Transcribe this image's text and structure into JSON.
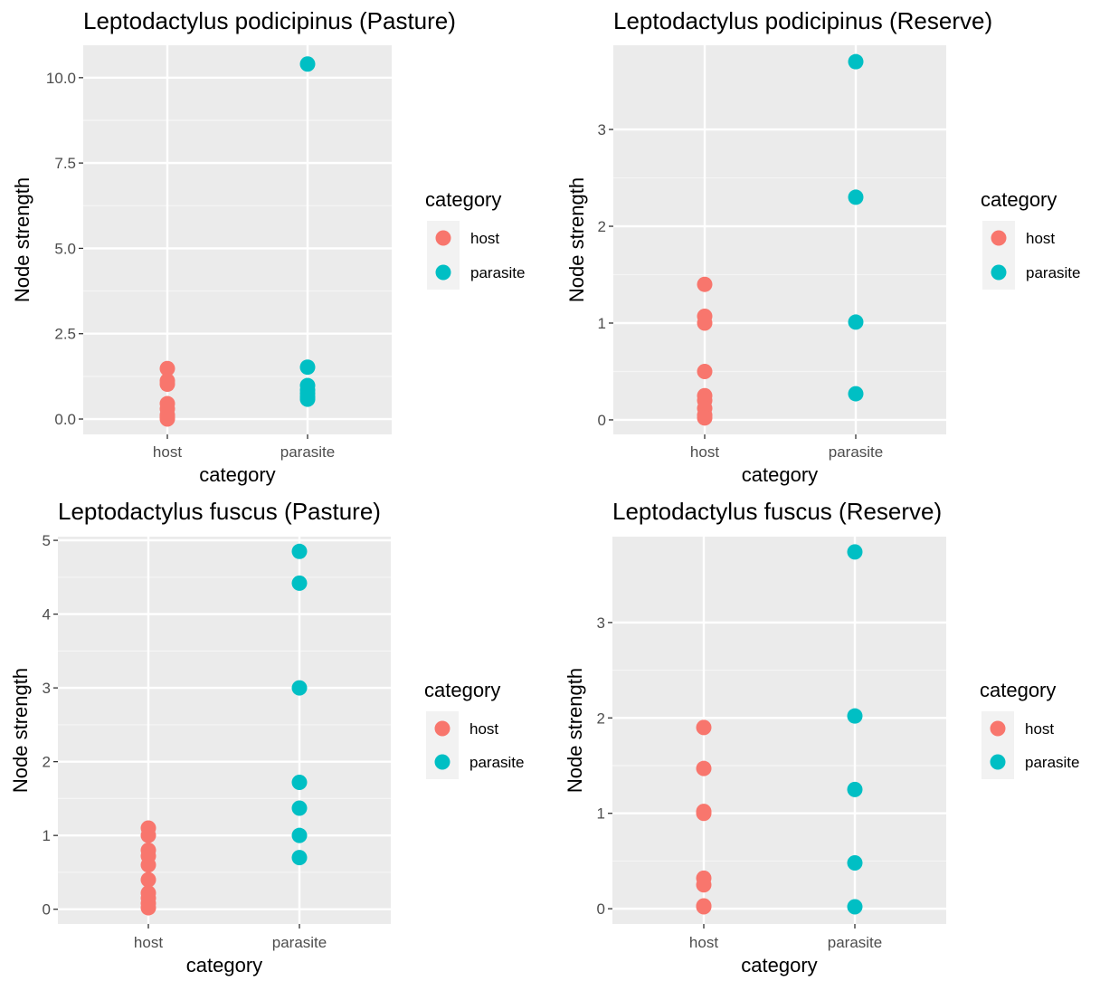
{
  "chart_data": [
    {
      "type": "scatter",
      "title": "Leptodactylus podicipinus (Pasture)",
      "xlabel": "category",
      "ylabel": "Node strength",
      "categories": [
        "host",
        "parasite"
      ],
      "ylim": [
        -0.45,
        10.95
      ],
      "yticks": [
        0.0,
        2.5,
        5.0,
        7.5,
        10.0
      ],
      "ytick_labels": [
        "0.0",
        "2.5",
        "5.0",
        "7.5",
        "10.0"
      ],
      "legend": {
        "title": "category",
        "position": "right"
      },
      "series": [
        {
          "name": "host",
          "color": "#F8766D",
          "category": "host",
          "values": [
            1.48,
            1.12,
            1.02,
            0.45,
            0.3,
            0.12,
            0.05,
            0.0
          ]
        },
        {
          "name": "parasite",
          "color": "#00BFC4",
          "category": "parasite",
          "values": [
            10.4,
            1.52,
            0.98,
            0.85,
            0.75,
            0.65,
            0.58
          ]
        }
      ]
    },
    {
      "type": "scatter",
      "title": "Leptodactylus podicipinus (Reserve)",
      "xlabel": "category",
      "ylabel": "Node strength",
      "categories": [
        "host",
        "parasite"
      ],
      "ylim": [
        -0.15,
        3.87
      ],
      "yticks": [
        0,
        1,
        2,
        3
      ],
      "ytick_labels": [
        "0",
        "1",
        "2",
        "3"
      ],
      "legend": {
        "title": "category",
        "position": "right"
      },
      "series": [
        {
          "name": "host",
          "color": "#F8766D",
          "category": "host",
          "values": [
            1.4,
            1.07,
            1.0,
            0.5,
            0.25,
            0.2,
            0.12,
            0.05,
            0.02
          ]
        },
        {
          "name": "parasite",
          "color": "#00BFC4",
          "category": "parasite",
          "values": [
            3.7,
            2.3,
            1.01,
            0.27
          ]
        }
      ]
    },
    {
      "type": "scatter",
      "title": "Leptodactylus fuscus (Pasture)",
      "xlabel": "category",
      "ylabel": "Node strength",
      "categories": [
        "host",
        "parasite"
      ],
      "ylim": [
        -0.2,
        5.05
      ],
      "yticks": [
        0,
        1,
        2,
        3,
        4,
        5
      ],
      "ytick_labels": [
        "0",
        "1",
        "2",
        "3",
        "4",
        "5"
      ],
      "legend": {
        "title": "category",
        "position": "right"
      },
      "series": [
        {
          "name": "host",
          "color": "#F8766D",
          "category": "host",
          "values": [
            1.1,
            1.0,
            0.8,
            0.72,
            0.6,
            0.4,
            0.22,
            0.15,
            0.08,
            0.02
          ]
        },
        {
          "name": "parasite",
          "color": "#00BFC4",
          "category": "parasite",
          "values": [
            4.85,
            4.42,
            3.0,
            1.72,
            1.37,
            1.0,
            0.7
          ]
        }
      ]
    },
    {
      "type": "scatter",
      "title": "Leptodactylus fuscus (Reserve)",
      "xlabel": "category",
      "ylabel": "Node strength",
      "categories": [
        "host",
        "parasite"
      ],
      "ylim": [
        -0.16,
        3.9
      ],
      "yticks": [
        0,
        1,
        2,
        3
      ],
      "ytick_labels": [
        "0",
        "1",
        "2",
        "3"
      ],
      "legend": {
        "title": "category",
        "position": "right"
      },
      "series": [
        {
          "name": "host",
          "color": "#F8766D",
          "category": "host",
          "values": [
            1.9,
            1.47,
            1.02,
            1.0,
            0.32,
            0.25,
            0.03,
            0.02
          ]
        },
        {
          "name": "parasite",
          "color": "#00BFC4",
          "category": "parasite",
          "values": [
            3.74,
            2.02,
            1.25,
            0.48,
            0.02
          ]
        }
      ]
    }
  ]
}
